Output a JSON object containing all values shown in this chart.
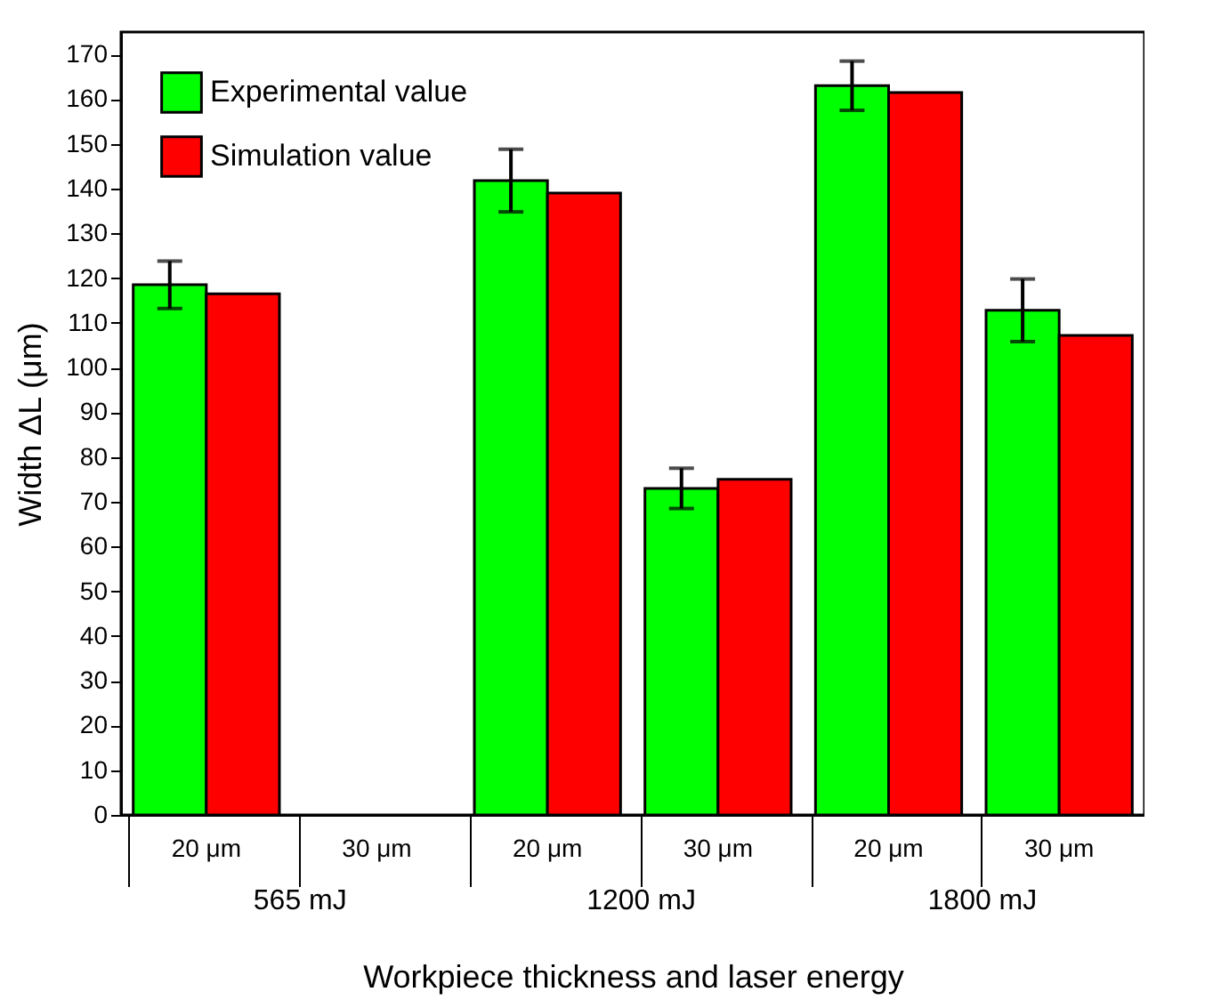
{
  "chart_data": {
    "type": "bar",
    "xlabel": "Workpiece thickness and laser energy",
    "ylabel": "Width ΔL (μm)",
    "categories": [
      "20 μm",
      "30 μm",
      "20 μm",
      "30 μm",
      "20 μm",
      "30 μm"
    ],
    "series": [
      {
        "name": "Experimental value",
        "color": "#00ff00",
        "values": [
          118.5,
          null,
          141.8,
          73,
          163,
          112.8
        ],
        "errors": [
          5.3,
          null,
          7,
          4.5,
          5.5,
          7
        ]
      },
      {
        "name": "Simulation value",
        "color": "#ff0000",
        "values": [
          116.5,
          null,
          139,
          75,
          161.5,
          107.2
        ]
      }
    ],
    "annotations": [
      "565 mJ",
      "1200 mJ",
      "1800 mJ"
    ],
    "ylim": [
      0,
      175
    ],
    "yticks": [
      0,
      10,
      20,
      30,
      40,
      50,
      60,
      70,
      80,
      90,
      100,
      110,
      120,
      130,
      140,
      150,
      160,
      170
    ],
    "legend": "top left"
  }
}
